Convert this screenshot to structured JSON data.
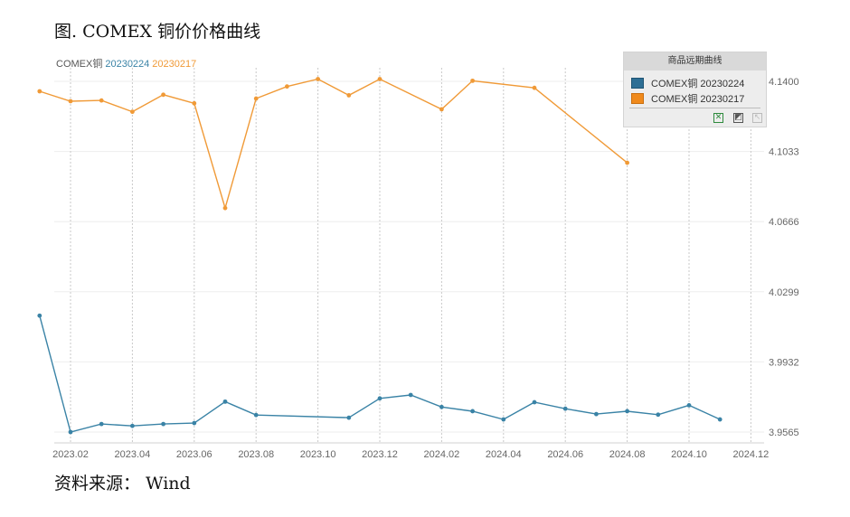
{
  "figure_title": "图. COMEX 铜价价格曲线",
  "source_note": "资料来源： Wind",
  "inline_legend": {
    "label": "COMEX铜",
    "series_a": "20230224",
    "series_b": "20230217"
  },
  "legend_panel": {
    "title": "商品远期曲线",
    "items": [
      "COMEX铜 20230224",
      "COMEX铜 20230217"
    ]
  },
  "colors": {
    "series_20230224": "#3a83a6",
    "series_20230217": "#f09a37",
    "grid": "#c9c9c9",
    "axis_text": "#666666"
  },
  "chart_data": {
    "type": "line",
    "xlabel": "",
    "ylabel": "",
    "x_ticks": [
      "2023.02",
      "2023.04",
      "2023.06",
      "2023.08",
      "2023.10",
      "2023.12",
      "2024.02",
      "2024.04",
      "2024.06",
      "2024.08",
      "2024.10",
      "2024.12"
    ],
    "y_ticks": [
      "3.9565",
      "3.9932",
      "4.0299",
      "4.0666",
      "4.1033",
      "4.1400"
    ],
    "ylim": [
      3.9565,
      4.14
    ],
    "xlim": [
      "2023-01",
      "2024-12"
    ],
    "y_axis_position": "right",
    "legend_placement": "top-right",
    "grid": "vertical dotted",
    "series": [
      {
        "name": "COMEX铜 20230224",
        "points": [
          [
            "2023-01",
            4.0174
          ],
          [
            "2023-02",
            3.9565
          ],
          [
            "2023-03",
            3.9607
          ],
          [
            "2023-04",
            3.9597
          ],
          [
            "2023-05",
            3.9607
          ],
          [
            "2023-06",
            3.9612
          ],
          [
            "2023-07",
            3.9724
          ],
          [
            "2023-08",
            3.9654
          ],
          [
            "2023-11",
            3.964
          ],
          [
            "2023-12",
            3.9741
          ],
          [
            "2024-01",
            3.9759
          ],
          [
            "2024-02",
            3.9696
          ],
          [
            "2024-03",
            3.9674
          ],
          [
            "2024-04",
            3.9631
          ],
          [
            "2024-05",
            3.9721
          ],
          [
            "2024-06",
            3.9687
          ],
          [
            "2024-07",
            3.9659
          ],
          [
            "2024-08",
            3.9674
          ],
          [
            "2024-09",
            3.9656
          ],
          [
            "2024-10",
            3.9705
          ],
          [
            "2024-11",
            3.9631
          ]
        ]
      },
      {
        "name": "COMEX铜 20230217",
        "points": [
          [
            "2023-01",
            4.1348
          ],
          [
            "2023-02",
            4.1296
          ],
          [
            "2023-03",
            4.13
          ],
          [
            "2023-04",
            4.1241
          ],
          [
            "2023-05",
            4.133
          ],
          [
            "2023-06",
            4.1285
          ],
          [
            "2023-07",
            4.0737
          ],
          [
            "2023-08",
            4.131
          ],
          [
            "2023-09",
            4.1373
          ],
          [
            "2023-10",
            4.1412
          ],
          [
            "2023-11",
            4.1327
          ],
          [
            "2023-12",
            4.1412
          ],
          [
            "2024-02",
            4.1254
          ],
          [
            "2024-03",
            4.1403
          ],
          [
            "2024-05",
            4.1366
          ],
          [
            "2024-08",
            4.0974
          ]
        ]
      }
    ]
  }
}
